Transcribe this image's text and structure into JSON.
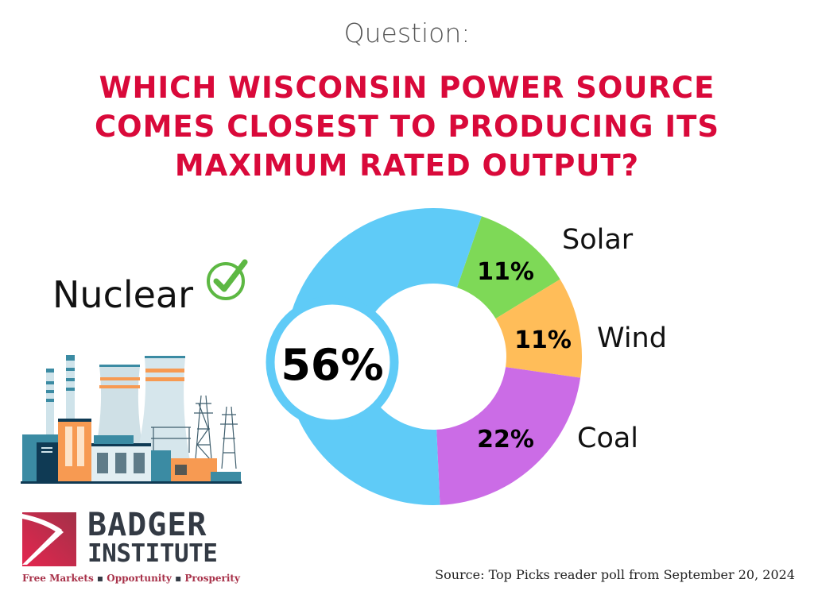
{
  "header": {
    "question_label": "Question:",
    "title_lines": [
      "WHICH WISCONSIN POWER SOURCE",
      "COMES CLOSEST TO PRODUCING ITS",
      "MAXIMUM RATED OUTPUT?"
    ]
  },
  "answer": {
    "label": "Nuclear",
    "icon": "checkmark-circle-icon",
    "icon_color": "#5db843"
  },
  "chart_data": {
    "type": "pie",
    "donut": true,
    "categories": [
      "Nuclear",
      "Solar",
      "Wind",
      "Coal"
    ],
    "values": [
      56,
      11,
      11,
      22
    ],
    "data_labels": [
      "56%",
      "11%",
      "11%",
      "22%"
    ],
    "colors": [
      "#5fcbf7",
      "#7ed957",
      "#ffbd59",
      "#cb6ce6"
    ],
    "legend": "labels beside slices"
  },
  "source": "Source: Top Picks reader poll from September 20, 2024",
  "logo": {
    "name_line1": "BADGER",
    "name_line2": "INSTITUTE",
    "tagline": [
      "Free Markets",
      "Opportunity",
      "Prosperity"
    ],
    "tagline_separator": "▪"
  }
}
